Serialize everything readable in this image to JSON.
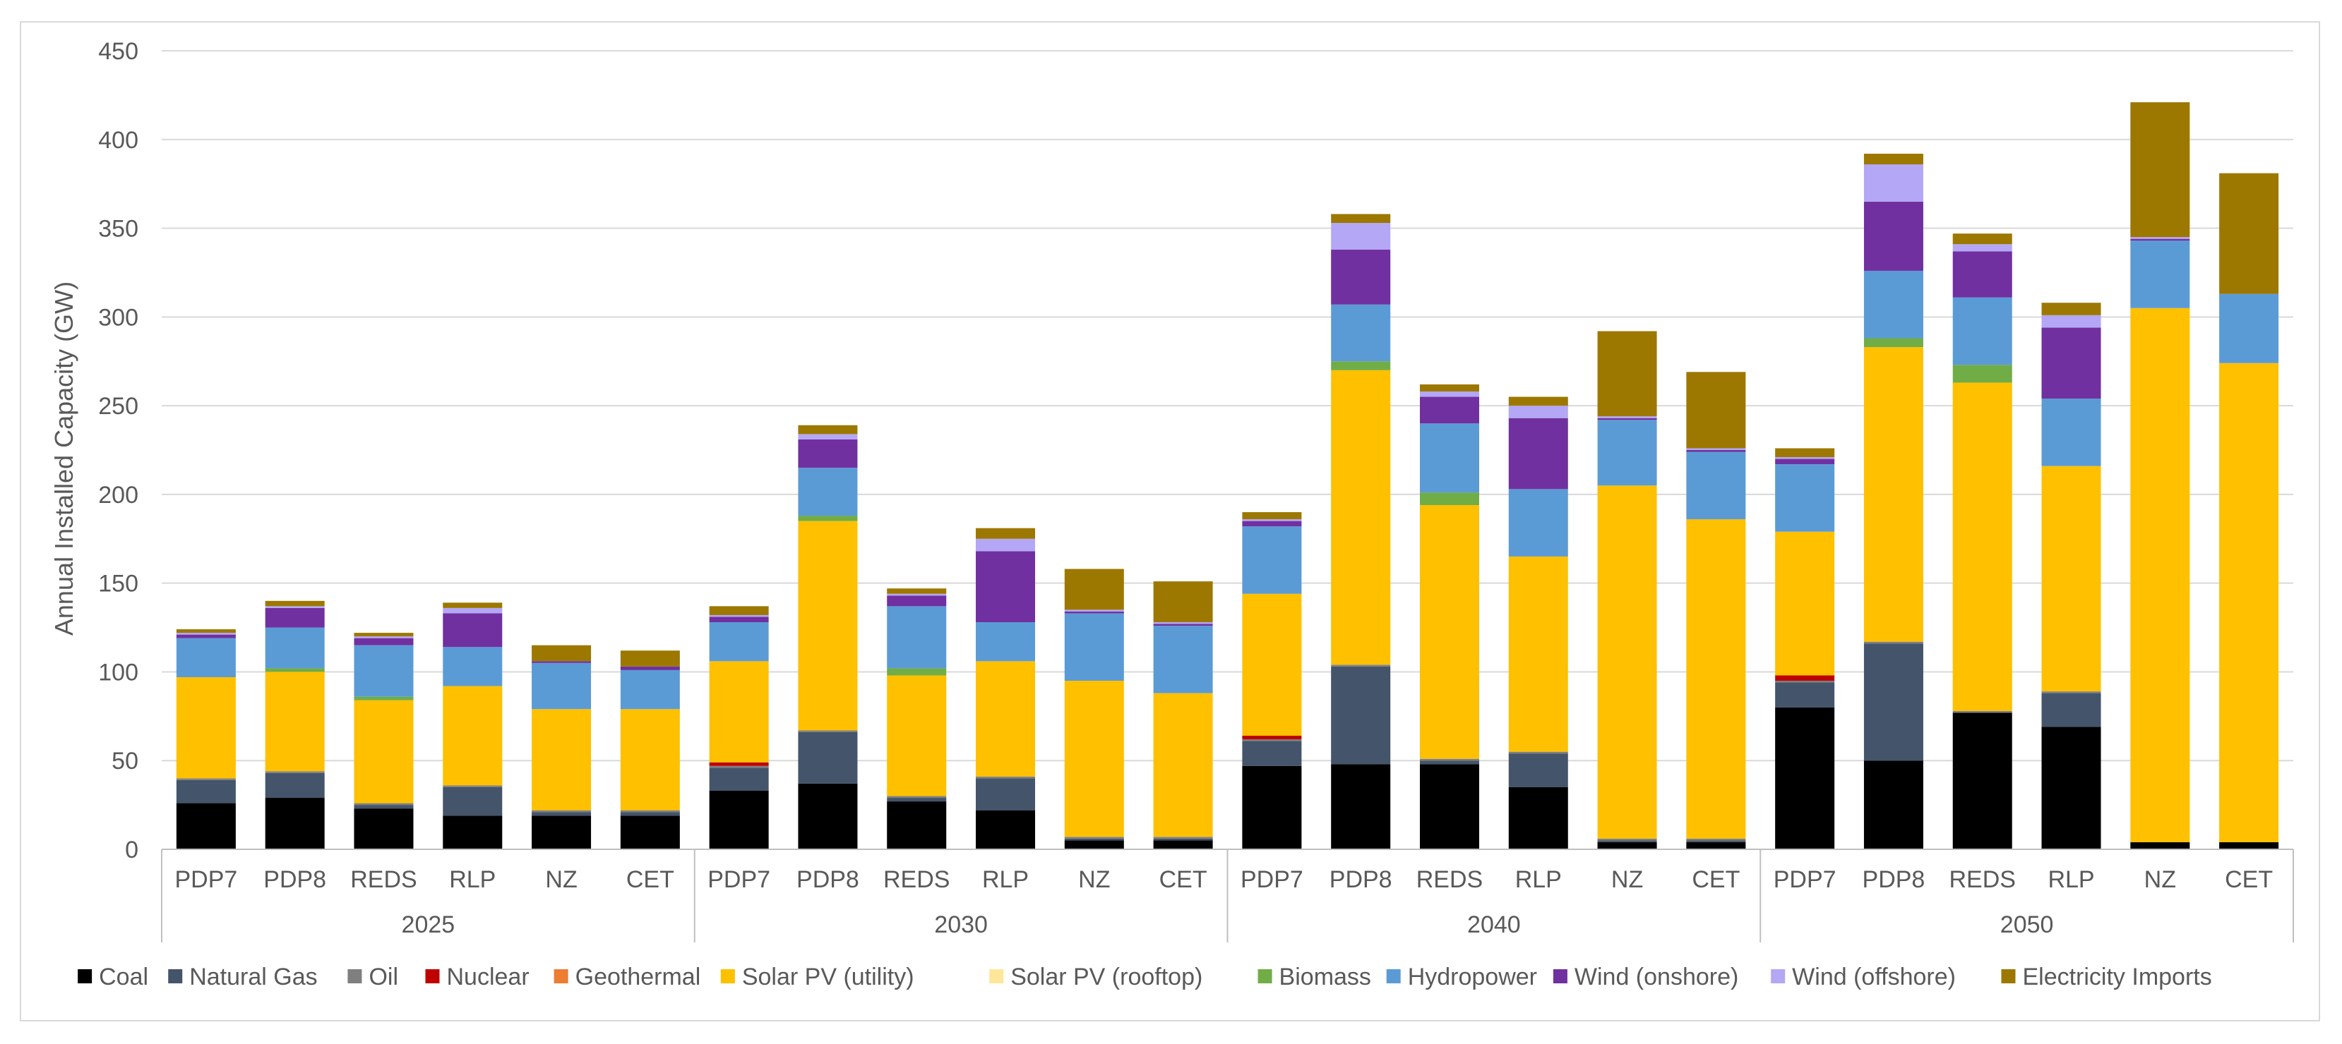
{
  "chart_data": {
    "type": "bar",
    "stacked": true,
    "ylabel": "Annual Installed Capacity (GW)",
    "xlabel": "",
    "ylim": [
      0,
      450
    ],
    "yticks": [
      0,
      50,
      100,
      150,
      200,
      250,
      300,
      350,
      400,
      450
    ],
    "grid": "horizontal",
    "legend_position": "bottom",
    "groups": [
      "2025",
      "2030",
      "2040",
      "2050"
    ],
    "scenarios": [
      "PDP7",
      "PDP8",
      "REDS",
      "RLP",
      "NZ",
      "CET"
    ],
    "categories": [
      "PDP7",
      "PDP8",
      "REDS",
      "RLP",
      "NZ",
      "CET",
      "PDP7",
      "PDP8",
      "REDS",
      "RLP",
      "NZ",
      "CET",
      "PDP7",
      "PDP8",
      "REDS",
      "RLP",
      "NZ",
      "CET",
      "PDP7",
      "PDP8",
      "REDS",
      "RLP",
      "NZ",
      "CET"
    ],
    "series": [
      {
        "name": "Coal",
        "color": "#000000",
        "values": [
          26,
          29,
          23,
          19,
          19,
          19,
          33,
          37,
          27,
          22,
          5,
          5,
          47,
          48,
          48,
          35,
          4,
          4,
          80,
          50,
          77,
          69,
          4,
          4
        ]
      },
      {
        "name": "Natural Gas",
        "color": "#44546a",
        "values": [
          13,
          14,
          2,
          16,
          2,
          2,
          13,
          29,
          2,
          18,
          1,
          1,
          14,
          55,
          2,
          19,
          1,
          1,
          14,
          66,
          0,
          19,
          0,
          0
        ]
      },
      {
        "name": "Oil",
        "color": "#7f7f7f",
        "values": [
          1,
          1,
          1,
          1,
          1,
          1,
          1,
          1,
          1,
          1,
          1,
          1,
          1,
          1,
          1,
          1,
          1,
          1,
          1,
          1,
          1,
          1,
          0,
          0
        ]
      },
      {
        "name": "Nuclear",
        "color": "#c00000",
        "values": [
          0,
          0,
          0,
          0,
          0,
          0,
          2,
          0,
          0,
          0,
          0,
          0,
          2,
          0,
          0,
          0,
          0,
          0,
          3,
          0,
          0,
          0,
          0,
          0
        ]
      },
      {
        "name": "Geothermal",
        "color": "#ed7d31",
        "values": [
          0,
          0,
          0,
          0,
          0,
          0,
          0,
          0,
          0,
          0,
          0,
          0,
          0,
          0,
          0,
          0,
          0,
          0,
          0,
          0,
          0,
          0,
          0,
          0
        ]
      },
      {
        "name": "Solar PV (utility)",
        "color": "#ffc000",
        "values": [
          57,
          56,
          58,
          56,
          57,
          57,
          57,
          118,
          68,
          65,
          88,
          81,
          80,
          166,
          143,
          110,
          199,
          180,
          81,
          166,
          185,
          127,
          301,
          270
        ]
      },
      {
        "name": "Solar PV (rooftop)",
        "color": "#ffe699",
        "values": [
          0,
          0,
          0,
          0,
          0,
          0,
          0,
          0,
          0,
          0,
          0,
          0,
          0,
          0,
          0,
          0,
          0,
          0,
          0,
          0,
          0,
          0,
          0,
          0
        ]
      },
      {
        "name": "Biomass",
        "color": "#70ad47",
        "values": [
          0,
          2,
          2,
          0,
          0,
          0,
          0,
          3,
          4,
          0,
          0,
          0,
          0,
          5,
          7,
          0,
          0,
          0,
          0,
          5,
          10,
          0,
          0,
          0
        ]
      },
      {
        "name": "Hydropower",
        "color": "#5b9bd5",
        "values": [
          22,
          23,
          29,
          22,
          26,
          22,
          22,
          27,
          35,
          22,
          38,
          38,
          38,
          32,
          39,
          38,
          37,
          38,
          38,
          38,
          38,
          38,
          38,
          39
        ]
      },
      {
        "name": "Wind (onshore)",
        "color": "#7030a0",
        "values": [
          2,
          11,
          4,
          19,
          1,
          2,
          3,
          16,
          6,
          40,
          1,
          1,
          3,
          31,
          15,
          40,
          1,
          1,
          3,
          39,
          26,
          40,
          1,
          0
        ]
      },
      {
        "name": "Wind (offshore)",
        "color": "#b4a7f5",
        "values": [
          1,
          1,
          1,
          3,
          0,
          0,
          1,
          3,
          1,
          7,
          1,
          1,
          1,
          15,
          3,
          7,
          1,
          1,
          1,
          21,
          4,
          7,
          1,
          0
        ]
      },
      {
        "name": "Electricity Imports",
        "color": "#9c7800",
        "values": [
          2,
          3,
          2,
          3,
          9,
          9,
          5,
          5,
          3,
          6,
          23,
          23,
          4,
          5,
          4,
          5,
          48,
          43,
          5,
          6,
          6,
          7,
          76,
          68
        ]
      }
    ]
  }
}
